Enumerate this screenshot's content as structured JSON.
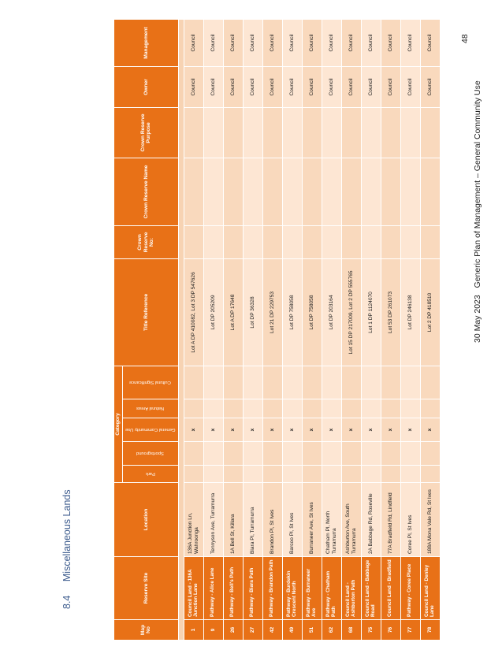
{
  "section": {
    "number": "8.4",
    "title": "Miscellaneous Lands"
  },
  "table": {
    "headers": {
      "map_no": "Map No",
      "reserve_site": "Reserve Site",
      "location": "Location",
      "category": "Category",
      "title_reference": "Title Reference",
      "crown_reserve_no": "Crown Reserve No:",
      "crown_reserve_name": "Crown Reserve Name",
      "crown_reserve_purpose": "Crown Reserve Purpose",
      "owner": "Owner",
      "management": "Management"
    },
    "categories": [
      "Park",
      "Sportsground",
      "General Community Use",
      "Natural Areas",
      "Cultural Significance"
    ],
    "mark_symbol": "x",
    "rows": [
      {
        "map": "1",
        "site": "Council Land - 136A Junction Lane",
        "location": "136A Junction Ln, Wahroonga",
        "general": true,
        "title": "Lot A DP 410082, Lot 3 DP 547626",
        "owner": "Council",
        "management": "Council"
      },
      {
        "map": "9",
        "site": "Pathway - Alice Lane",
        "location": "Tennyson Ave, Turramurra",
        "general": true,
        "title": "Lot DP 205209",
        "owner": "Council",
        "management": "Council"
      },
      {
        "map": "26",
        "site": "Pathway - Bell's Path",
        "location": "1A Bell St, Killara",
        "general": true,
        "title": "Lot A DP 17648",
        "owner": "Council",
        "management": "Council"
      },
      {
        "map": "27",
        "site": "Pathway - Biara Path",
        "location": "Biara Pl, Turramurra",
        "general": true,
        "title": "Lot DP 36328",
        "owner": "Council",
        "management": "Council"
      },
      {
        "map": "42",
        "site": "Pathway - Brandon Path",
        "location": "Brandon Pl, St Ives",
        "general": true,
        "title": "Lot 21 DP 229753",
        "owner": "Council",
        "management": "Council"
      },
      {
        "map": "49",
        "site": "Pathway - Burdekin Crescent North",
        "location": "Barcoo Pl, St Ives",
        "general": true,
        "title": "Lot DP 758058",
        "owner": "Council",
        "management": "Council"
      },
      {
        "map": "51",
        "site": "Pathway - Burraneer Ave",
        "location": "Burraneer Ave, St Ives",
        "general": true,
        "title": "Lot DP 758058",
        "owner": "Council",
        "management": "Council"
      },
      {
        "map": "62",
        "site": "Pathway - Chatham Path",
        "location": "Chatham Pl, North Turramurra",
        "general": true,
        "title": "Lot DP 203164",
        "owner": "Council",
        "management": "Council"
      },
      {
        "map": "68",
        "site": "Council Land - Ashburton Path",
        "location": "Ashburton Ave, South Turramurra",
        "general": true,
        "title": "Lot 15 DP 217009, Lot 2 DP 555765",
        "owner": "Council",
        "management": "Council"
      },
      {
        "map": "75",
        "site": "Council Land - Babbage Road",
        "location": "2A Babbage Rd, Roseville",
        "general": true,
        "title": "Lot 1 DP 1124070",
        "owner": "Council",
        "management": "Council"
      },
      {
        "map": "76",
        "site": "Council Land - Bradfield",
        "location": "77A Bradfield Rd, Lindfield",
        "general": true,
        "title": "Lot 53 DP 261073",
        "owner": "Council",
        "management": "Council"
      },
      {
        "map": "77",
        "site": "Pathway - Coree Place",
        "location": "Coree Pl, St Ives",
        "general": true,
        "title": "Lot DP 246138",
        "owner": "Council",
        "management": "Council"
      },
      {
        "map": "78",
        "site": "Council Land - Denley Lane",
        "location": "188A Mona Vale Rd, St Ives",
        "general": true,
        "title": "Lot 2 DP 418510",
        "owner": "Council",
        "management": "Council"
      }
    ]
  },
  "footer": {
    "date": "30 May 2023",
    "document_title": "Generic Plan of Management – General Community Use"
  },
  "page_number": "48"
}
